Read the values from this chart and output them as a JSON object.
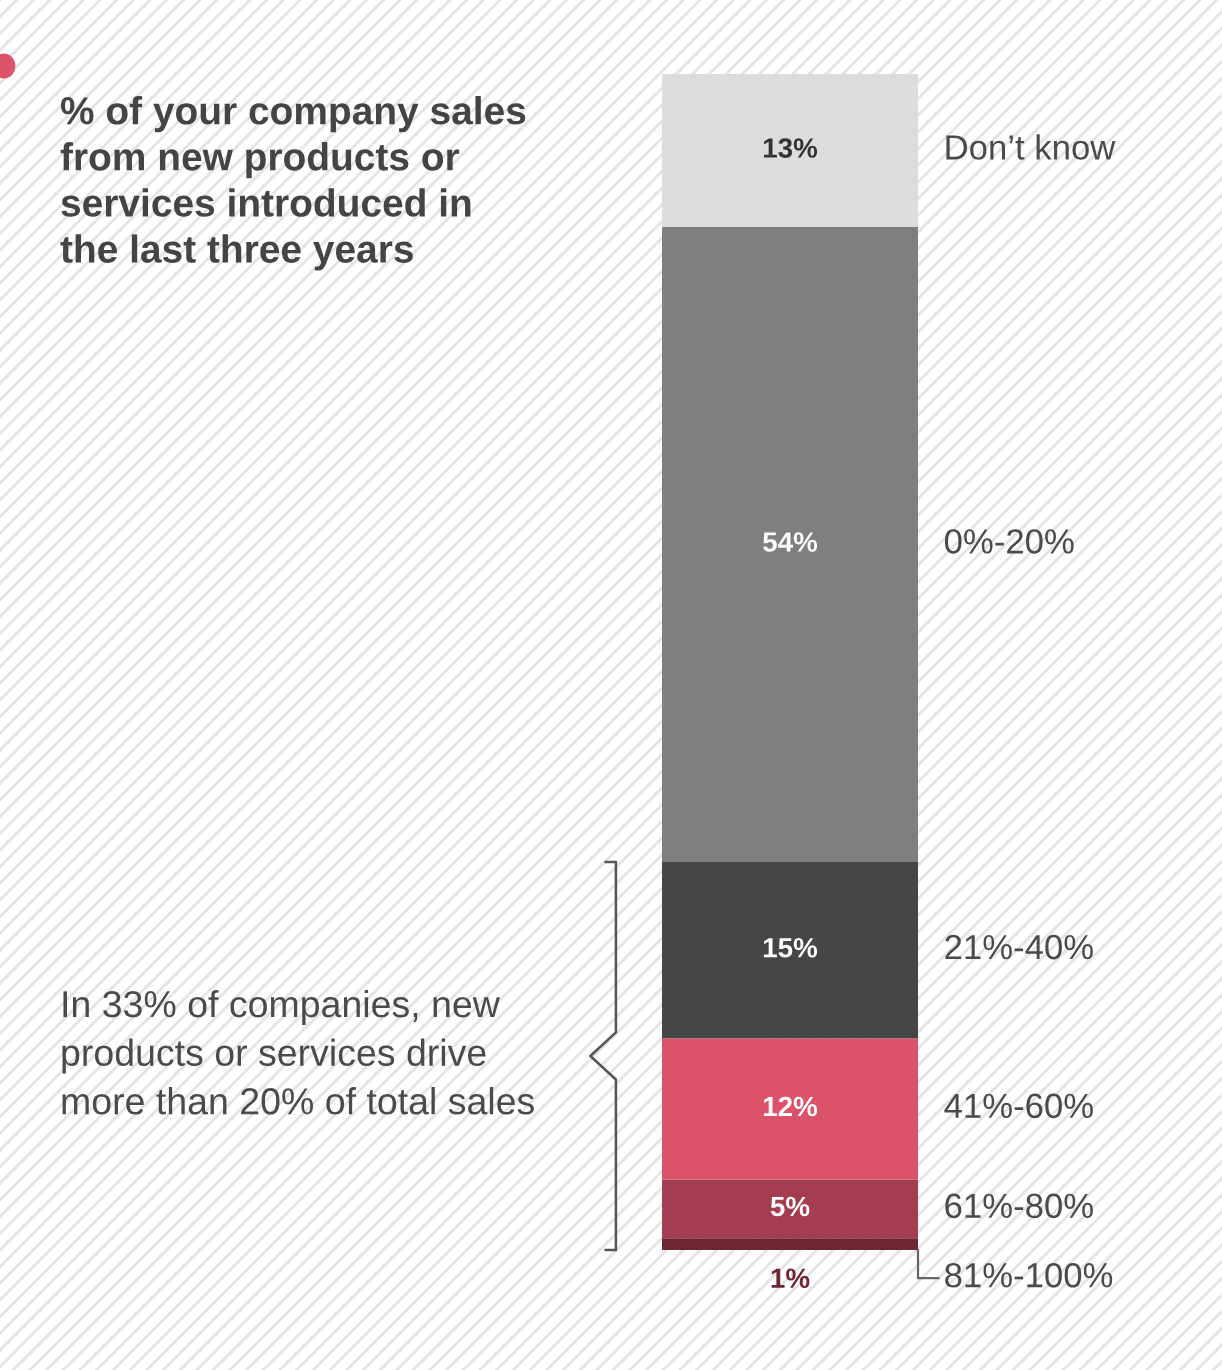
{
  "chart_data": {
    "type": "bar",
    "title": "% of your company sales from new products or services introduced in the last three years",
    "categories": [
      null
    ],
    "stacked": true,
    "grid": false,
    "series": [
      {
        "name": "81%-100%",
        "color": "#6e2634",
        "values": [
          1
        ],
        "value_labels": [
          "1%"
        ]
      },
      {
        "name": "61%-80%",
        "color": "#a33d4f",
        "values": [
          5
        ],
        "value_labels": [
          "5%"
        ]
      },
      {
        "name": "41%-60%",
        "color": "#db536b",
        "values": [
          12
        ],
        "value_labels": [
          "12%"
        ]
      },
      {
        "name": "21%-40%",
        "color": "#464646",
        "values": [
          15
        ],
        "value_labels": [
          "15%"
        ]
      },
      {
        "name": "0%-20%",
        "color": "#7f7f7f",
        "values": [
          54
        ],
        "value_labels": [
          "54%"
        ]
      },
      {
        "name": "Don’t know",
        "color": "#dcdcdc",
        "values": [
          13
        ],
        "value_labels": [
          "13%"
        ]
      }
    ],
    "annotations": [
      "In 33% of companies, new products or services drive more than 20% of total sales"
    ]
  }
}
